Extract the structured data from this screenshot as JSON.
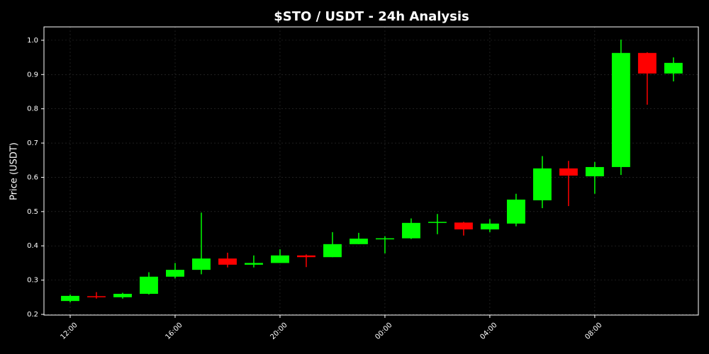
{
  "chart_data": {
    "type": "candlestick",
    "title": "$STO / USDT - 24h Analysis",
    "y_label": "Price (USDT)",
    "x": [
      "12:00",
      "13:00",
      "14:00",
      "15:00",
      "16:00",
      "17:00",
      "18:00",
      "19:00",
      "20:00",
      "21:00",
      "22:00",
      "23:00",
      "00:00",
      "01:00",
      "02:00",
      "03:00",
      "04:00",
      "05:00",
      "06:00",
      "07:00",
      "08:00",
      "09:00",
      "10:00",
      "11:00"
    ],
    "open": [
      0.239,
      0.253,
      0.25,
      0.26,
      0.31,
      0.33,
      0.363,
      0.345,
      0.35,
      0.372,
      0.367,
      0.405,
      0.42,
      0.422,
      0.467,
      0.468,
      0.448,
      0.465,
      0.533,
      0.626,
      0.603,
      0.63,
      0.963,
      0.903
    ],
    "high": [
      0.258,
      0.265,
      0.263,
      0.323,
      0.35,
      0.497,
      0.38,
      0.372,
      0.39,
      0.375,
      0.44,
      0.438,
      0.428,
      0.48,
      0.493,
      0.47,
      0.478,
      0.552,
      0.662,
      0.648,
      0.645,
      1.002,
      0.965,
      0.95
    ],
    "low": [
      0.235,
      0.246,
      0.246,
      0.258,
      0.305,
      0.317,
      0.337,
      0.337,
      0.35,
      0.338,
      0.367,
      0.405,
      0.378,
      0.42,
      0.434,
      0.43,
      0.44,
      0.457,
      0.51,
      0.516,
      0.552,
      0.607,
      0.812,
      0.88
    ],
    "close": [
      0.254,
      0.25,
      0.26,
      0.31,
      0.33,
      0.363,
      0.345,
      0.35,
      0.372,
      0.367,
      0.405,
      0.421,
      0.422,
      0.467,
      0.47,
      0.448,
      0.465,
      0.535,
      0.626,
      0.605,
      0.63,
      0.963,
      0.903,
      0.934
    ],
    "up_color": "#00ff00",
    "down_color": "#ff0000",
    "ylim": [
      0.198,
      1.039
    ],
    "yticks": [
      0.2,
      0.3,
      0.4,
      0.5,
      0.6,
      0.7,
      0.8,
      0.9,
      {
        "value": 1,
        "label": "1.0"
      }
    ],
    "xticks": [
      "12:00",
      "16:00",
      "20:00",
      "00:00",
      "04:00",
      "08:00"
    ],
    "grid": true
  }
}
